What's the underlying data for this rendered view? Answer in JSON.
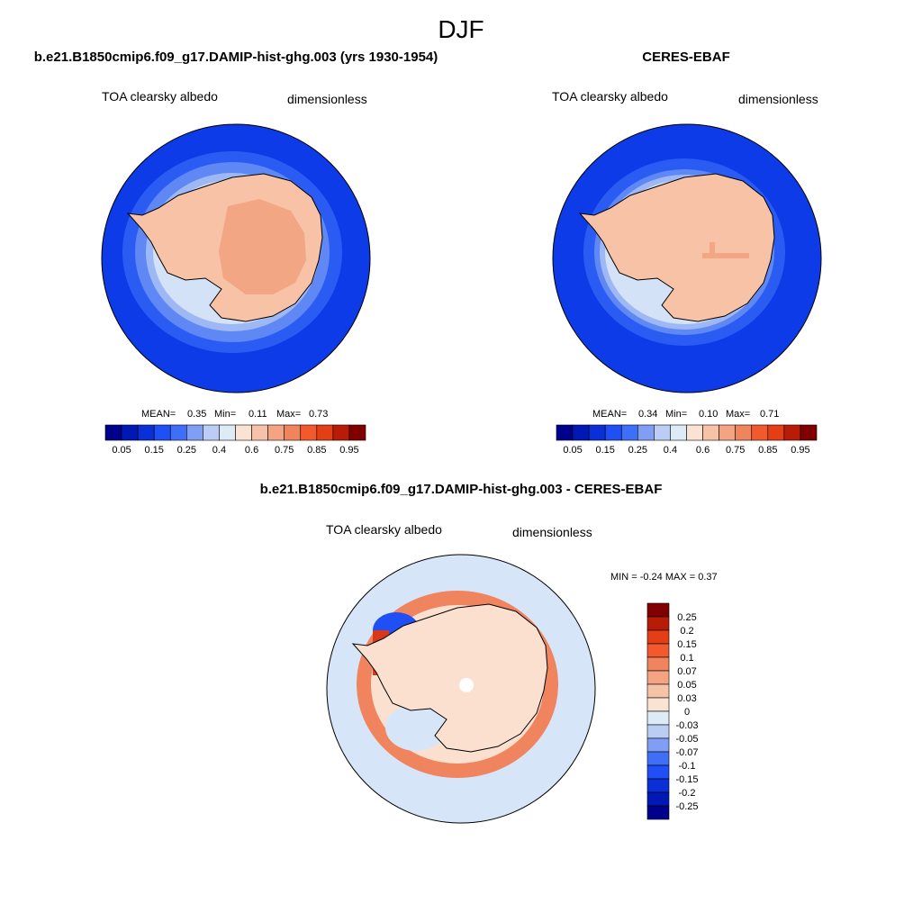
{
  "figure": {
    "season": "DJF"
  },
  "panels": {
    "model": {
      "title": "b.e21.B1850cmip6.f09_g17.DAMIP-hist-ghg.003 (yrs 1930-1954)",
      "variable": "TOA clearsky albedo",
      "units": "dimensionless",
      "stats": {
        "mean_label": "MEAN=",
        "mean": "0.35",
        "min_label": "Min=",
        "min": "0.11",
        "max_label": "Max=",
        "max": "0.73"
      }
    },
    "obs": {
      "title": "CERES-EBAF",
      "variable": "TOA clearsky albedo",
      "units": "dimensionless",
      "stats": {
        "mean_label": "MEAN=",
        "mean": "0.34",
        "min_label": "Min=",
        "min": "0.10",
        "max_label": "Max=",
        "max": "0.71"
      }
    },
    "diff": {
      "title": "b.e21.B1850cmip6.f09_g17.DAMIP-hist-ghg.003 - CERES-EBAF",
      "variable": "TOA clearsky albedo",
      "units": "dimensionless",
      "minmax": "MIN =  -0.24 MAX =   0.37"
    }
  },
  "colorbars": {
    "albedo": {
      "colors": [
        "#00008b",
        "#0018b4",
        "#0a2fd6",
        "#1f4ff5",
        "#3f6ff7",
        "#7f9ef4",
        "#bccdf5",
        "#ddebf7",
        "#fbe3d3",
        "#f7c3a8",
        "#f4a483",
        "#f0845f",
        "#f2592d",
        "#e33e15",
        "#b81c07",
        "#800000"
      ],
      "tick_labels": [
        "0.05",
        "0.15",
        "0.25",
        "0.4",
        "0.6",
        "0.75",
        "0.85",
        "0.95"
      ]
    },
    "diff": {
      "colors": [
        "#800000",
        "#b81c07",
        "#e33e15",
        "#f2592d",
        "#f0845f",
        "#f4a483",
        "#f7c3a8",
        "#fbe3d3",
        "#ddebf7",
        "#bccdf5",
        "#7f9ef4",
        "#3f6ff7",
        "#1f4ff5",
        "#0a2fd6",
        "#0018b4",
        "#00008b"
      ],
      "tick_labels": [
        "0.25",
        "0.2",
        "0.15",
        "0.1",
        "0.07",
        "0.05",
        "0.03",
        "0",
        "-0.03",
        "-0.05",
        "-0.07",
        "-0.1",
        "-0.15",
        "-0.2",
        "-0.25"
      ]
    }
  },
  "map_colors": {
    "ocean_far": "#0d3be8",
    "ocean_mid": "#2a5cf4",
    "sea_ice_1": "#5f88f5",
    "sea_ice_2": "#9db8f5",
    "sea_ice_3": "#d3e2f7",
    "ice_edge": "#f2f6fb",
    "continent": "#f7c2a6",
    "plateau": "#f2a683",
    "diff_bg": "#d6e6f8",
    "diff_red": "#f0845f",
    "diff_darkred": "#d8381a",
    "diff_pale": "#fbe0cf",
    "diff_blue": "#2a5cf4"
  }
}
